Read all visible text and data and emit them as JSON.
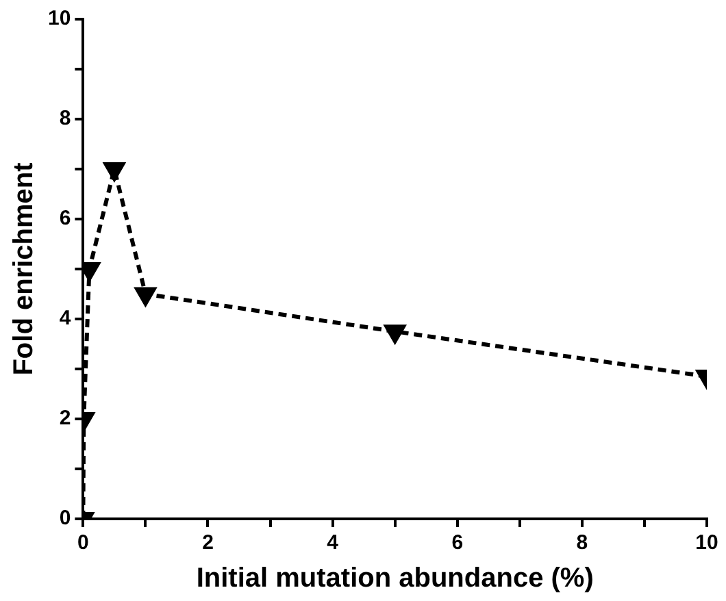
{
  "chart_data": {
    "type": "line",
    "xlabel": "Initial mutation abundance (%)",
    "ylabel": "Fold enrichment",
    "x": [
      0,
      0.01,
      0.1,
      0.5,
      1,
      5,
      10
    ],
    "series": [
      {
        "color": "#000000",
        "values": [
          0,
          2,
          5,
          7,
          4.5,
          3.75,
          2.85
        ]
      }
    ],
    "xlim": [
      0,
      10
    ],
    "ylim": [
      0,
      10
    ],
    "xticks": [
      0,
      {
        "value": 1,
        "label": null
      },
      2,
      {
        "value": 3,
        "label": null
      },
      4,
      {
        "value": 5,
        "label": null
      },
      6,
      {
        "value": 7,
        "label": null
      },
      8,
      {
        "value": 9,
        "label": null
      },
      10
    ],
    "yticks": [
      0,
      {
        "value": 1,
        "label": null
      },
      2,
      {
        "value": 3,
        "label": null
      },
      4,
      {
        "value": 5,
        "label": null
      },
      6,
      {
        "value": 7,
        "label": null
      },
      8,
      {
        "value": 9,
        "label": null
      },
      10
    ],
    "grid": false,
    "legend": false,
    "marker": "triangle",
    "line_style": "dashed"
  }
}
